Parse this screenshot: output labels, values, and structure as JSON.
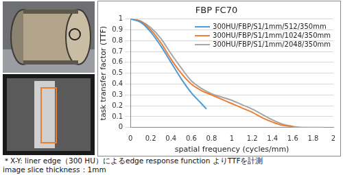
{
  "chart_data": {
    "type": "line",
    "title": "FBP FC70",
    "x_label": "spatial frequency (cycles/mm)",
    "y_label": "task transfer factor (TTF)",
    "xlim": [
      0,
      2
    ],
    "xticks": [
      0,
      0.2,
      0.4,
      0.6,
      0.8,
      1,
      1.2,
      1.4,
      1.6,
      1.8,
      2
    ],
    "ylim": [
      0,
      1
    ],
    "yticks": [
      0,
      0.1,
      0.2,
      0.3,
      0.4,
      0.5,
      0.6,
      0.7,
      0.8,
      0.9,
      1
    ],
    "grid": true,
    "legend": "top right",
    "series": [
      {
        "name": "300HU/FBP/S1/1mm/512/350mm",
        "color": "#4a9bd8",
        "x": [
          0,
          0.1,
          0.2,
          0.3,
          0.4,
          0.5,
          0.6,
          0.7,
          0.75
        ],
        "values": [
          1,
          0.97,
          0.88,
          0.75,
          0.6,
          0.45,
          0.32,
          0.22,
          0.17
        ]
      },
      {
        "name": "300HU/FBP/S1/1mm/1024/350mm",
        "color": "#ed7d31",
        "x": [
          0,
          0.1,
          0.2,
          0.3,
          0.4,
          0.5,
          0.6,
          0.7,
          0.8,
          0.9,
          1,
          1.1,
          1.2,
          1.3,
          1.4,
          1.5,
          1.6
        ],
        "values": [
          1,
          0.98,
          0.9,
          0.78,
          0.63,
          0.5,
          0.4,
          0.34,
          0.3,
          0.26,
          0.22,
          0.18,
          0.14,
          0.09,
          0.05,
          0.02,
          0.01
        ]
      },
      {
        "name": "300HU/FBP/S1/1mm/2048/350mm",
        "color": "#a5a5a5",
        "x": [
          0,
          0.1,
          0.2,
          0.3,
          0.4,
          0.5,
          0.6,
          0.7,
          0.8,
          0.9,
          1,
          1.1,
          1.2,
          1.3,
          1.4,
          1.5,
          1.6,
          1.7,
          1.8,
          1.9
        ],
        "values": [
          1,
          0.98,
          0.92,
          0.82,
          0.68,
          0.55,
          0.43,
          0.36,
          0.31,
          0.28,
          0.25,
          0.21,
          0.17,
          0.12,
          0.07,
          0.03,
          0.01,
          0,
          0,
          0
        ]
      }
    ],
    "annotations": [
      "＊X-Y: liner edge（300 HU）によるedge response function よりTTFを計測",
      "image slice thickness：1mm"
    ]
  }
}
